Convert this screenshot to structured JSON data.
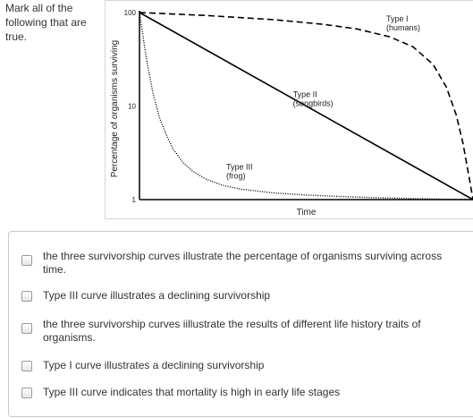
{
  "question": {
    "prompt": "Mark all of the following that are true."
  },
  "chart_data": {
    "type": "line",
    "xlabel": "Time",
    "ylabel": "Percentage of organisms surviving",
    "yscale": "log",
    "ylim": [
      1,
      100
    ],
    "xlim": [
      0,
      1
    ],
    "yticks": [
      "100",
      "10",
      "1"
    ],
    "grid": false,
    "series": [
      {
        "name": "Type I",
        "subname": "(humans)",
        "style": "dashed",
        "x": [
          0,
          0.2,
          0.4,
          0.55,
          0.65,
          0.75,
          0.82,
          0.88,
          0.92,
          0.95,
          0.97,
          0.99,
          1.0
        ],
        "y": [
          100,
          93,
          84,
          75,
          67,
          55,
          43,
          28,
          16,
          8,
          4,
          1.6,
          1
        ]
      },
      {
        "name": "Type II",
        "subname": "(songbirds)",
        "style": "solid",
        "x": [
          0,
          1
        ],
        "y": [
          100,
          1
        ]
      },
      {
        "name": "Type III",
        "subname": "(frog)",
        "style": "dotted",
        "x": [
          0,
          0.02,
          0.04,
          0.06,
          0.08,
          0.1,
          0.13,
          0.16,
          0.2,
          0.25,
          0.3,
          0.4,
          0.5,
          0.6,
          0.7,
          0.8,
          0.9,
          1.0
        ],
        "y": [
          100,
          33,
          14,
          7.5,
          5,
          3.5,
          2.5,
          2.0,
          1.65,
          1.42,
          1.3,
          1.18,
          1.12,
          1.08,
          1.05,
          1.03,
          1.01,
          1.0
        ]
      }
    ]
  },
  "options": [
    {
      "label": "the three survivorship curves illustrate the percentage of organisms surviving across time."
    },
    {
      "label": "Type III curve illustrates a declining survivorship"
    },
    {
      "label": "the three survivorship curves iillustrate the results of different life history traits of organisms."
    },
    {
      "label": "Type I curve illustrates a declining survivorship"
    },
    {
      "label": "Type III curve indicates that mortality is high in early life stages"
    }
  ]
}
